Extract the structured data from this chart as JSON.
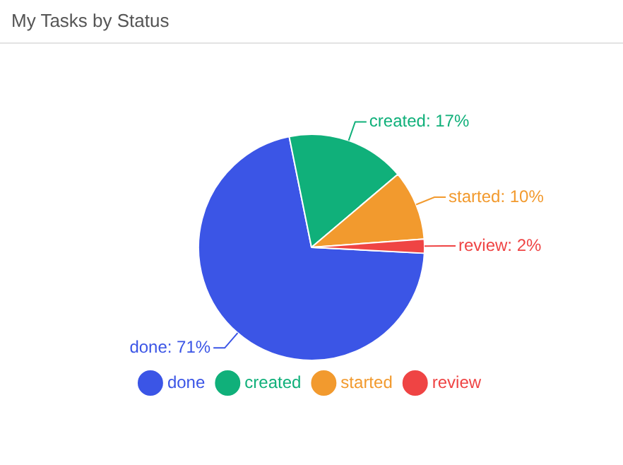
{
  "chart_data": {
    "type": "pie",
    "title": "My Tasks by Status",
    "categories": [
      "done",
      "created",
      "started",
      "review"
    ],
    "values": [
      71,
      17,
      10,
      2
    ],
    "value_labels": [
      "done: 71%",
      "created: 17%",
      "started: 10%",
      "review: 2%"
    ],
    "colors": [
      "#3b55e6",
      "#10b07a",
      "#f29a2e",
      "#ef4444"
    ],
    "legend": "bottom"
  }
}
